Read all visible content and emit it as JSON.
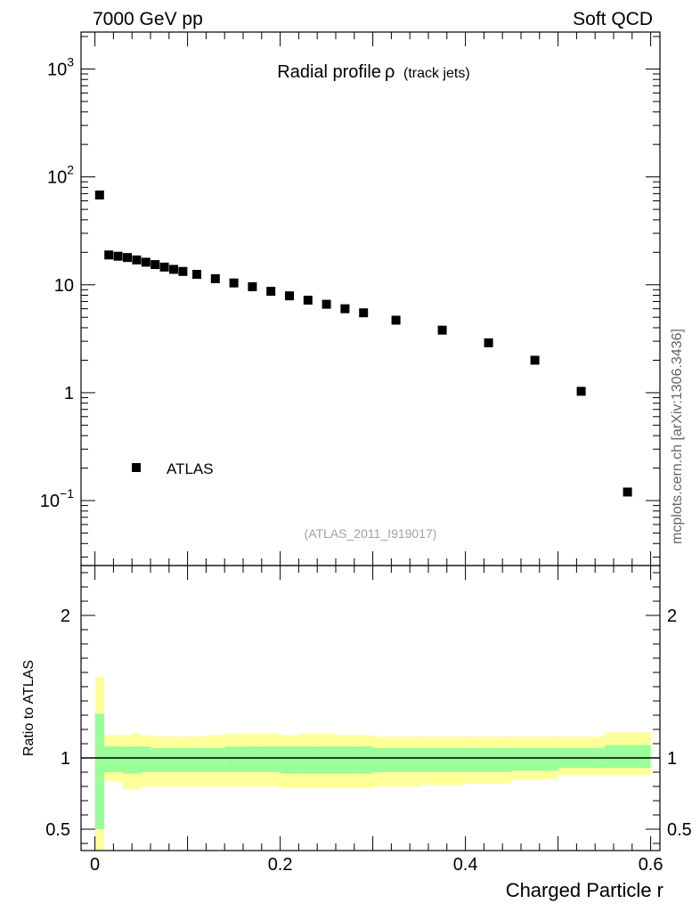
{
  "header": {
    "left": "7000 GeV pp",
    "right": "Soft QCD"
  },
  "side_label": "mcplots.cern.ch [arXiv:1306.3436]",
  "chart_data": [
    {
      "type": "scatter",
      "title": "Radial profile",
      "title_symbol": "ρ",
      "title_suffix": "(track jets)",
      "watermark": "(ATLAS_2011_I919017)",
      "y_scale": "log",
      "ylim": [
        0.025,
        2200
      ],
      "xlim": [
        -0.015,
        0.61
      ],
      "y_ticks": [
        {
          "value": 0.1,
          "base": "10",
          "exp": "−1"
        },
        {
          "value": 1,
          "base": "1",
          "exp": ""
        },
        {
          "value": 10,
          "base": "10",
          "exp": ""
        },
        {
          "value": 100,
          "base": "10",
          "exp": "2"
        },
        {
          "value": 1000,
          "base": "10",
          "exp": "3"
        }
      ],
      "legend": {
        "placement": "lower-left",
        "label": "ATLAS",
        "marker_color": "#000000"
      },
      "series": [
        {
          "name": "ATLAS",
          "color": "#000000",
          "x": [
            0.005,
            0.015,
            0.025,
            0.035,
            0.045,
            0.055,
            0.065,
            0.075,
            0.085,
            0.095,
            0.11,
            0.13,
            0.15,
            0.17,
            0.19,
            0.21,
            0.23,
            0.25,
            0.27,
            0.29,
            0.325,
            0.375,
            0.425,
            0.475,
            0.525,
            0.575
          ],
          "y": [
            68,
            18.9,
            18.4,
            17.9,
            17.0,
            16.2,
            15.4,
            14.6,
            13.9,
            13.3,
            12.5,
            11.4,
            10.4,
            9.6,
            8.7,
            7.9,
            7.2,
            6.6,
            6.0,
            5.5,
            4.7,
            3.8,
            2.9,
            2.0,
            1.03,
            0.12
          ]
        }
      ]
    },
    {
      "type": "area",
      "ylabel": "Ratio to ATLAS",
      "xlabel": "Charged Particle r",
      "xlim": [
        -0.015,
        0.61
      ],
      "ylim": [
        0.35,
        2.35
      ],
      "x_ticks": [
        "0",
        "0.2",
        "0.4",
        "0.6"
      ],
      "x_tick_values": [
        0,
        0.2,
        0.4,
        0.6
      ],
      "y_ticks": [
        "0.5",
        "1",
        "2"
      ],
      "y_tick_values": [
        0.5,
        1,
        2
      ],
      "reference_line": 1,
      "band_colors": {
        "outer": "#ffff99",
        "inner": "#99ff99",
        "line": "#000000"
      },
      "bins": [
        {
          "x0": 0.0,
          "x1": 0.01,
          "outer_lo": 0.35,
          "outer_hi": 1.57,
          "inner_lo": 0.5,
          "inner_hi": 1.31
        },
        {
          "x0": 0.01,
          "x1": 0.02,
          "outer_lo": 0.84,
          "outer_hi": 1.16,
          "inner_lo": 0.9,
          "inner_hi": 1.08
        },
        {
          "x0": 0.02,
          "x1": 0.03,
          "outer_lo": 0.83,
          "outer_hi": 1.16,
          "inner_lo": 0.9,
          "inner_hi": 1.08
        },
        {
          "x0": 0.03,
          "x1": 0.04,
          "outer_lo": 0.78,
          "outer_hi": 1.16,
          "inner_lo": 0.89,
          "inner_hi": 1.08
        },
        {
          "x0": 0.04,
          "x1": 0.05,
          "outer_lo": 0.78,
          "outer_hi": 1.17,
          "inner_lo": 0.89,
          "inner_hi": 1.08
        },
        {
          "x0": 0.05,
          "x1": 0.06,
          "outer_lo": 0.8,
          "outer_hi": 1.16,
          "inner_lo": 0.9,
          "inner_hi": 1.08
        },
        {
          "x0": 0.06,
          "x1": 0.07,
          "outer_lo": 0.8,
          "outer_hi": 1.15,
          "inner_lo": 0.9,
          "inner_hi": 1.07
        },
        {
          "x0": 0.07,
          "x1": 0.08,
          "outer_lo": 0.8,
          "outer_hi": 1.15,
          "inner_lo": 0.9,
          "inner_hi": 1.07
        },
        {
          "x0": 0.08,
          "x1": 0.1,
          "outer_lo": 0.8,
          "outer_hi": 1.15,
          "inner_lo": 0.9,
          "inner_hi": 1.07
        },
        {
          "x0": 0.1,
          "x1": 0.12,
          "outer_lo": 0.8,
          "outer_hi": 1.15,
          "inner_lo": 0.9,
          "inner_hi": 1.07
        },
        {
          "x0": 0.12,
          "x1": 0.14,
          "outer_lo": 0.8,
          "outer_hi": 1.16,
          "inner_lo": 0.9,
          "inner_hi": 1.07
        },
        {
          "x0": 0.14,
          "x1": 0.16,
          "outer_lo": 0.8,
          "outer_hi": 1.17,
          "inner_lo": 0.9,
          "inner_hi": 1.08
        },
        {
          "x0": 0.16,
          "x1": 0.18,
          "outer_lo": 0.8,
          "outer_hi": 1.17,
          "inner_lo": 0.9,
          "inner_hi": 1.08
        },
        {
          "x0": 0.18,
          "x1": 0.2,
          "outer_lo": 0.8,
          "outer_hi": 1.17,
          "inner_lo": 0.9,
          "inner_hi": 1.08
        },
        {
          "x0": 0.2,
          "x1": 0.22,
          "outer_lo": 0.79,
          "outer_hi": 1.16,
          "inner_lo": 0.89,
          "inner_hi": 1.08
        },
        {
          "x0": 0.22,
          "x1": 0.24,
          "outer_lo": 0.79,
          "outer_hi": 1.17,
          "inner_lo": 0.89,
          "inner_hi": 1.08
        },
        {
          "x0": 0.24,
          "x1": 0.26,
          "outer_lo": 0.79,
          "outer_hi": 1.17,
          "inner_lo": 0.89,
          "inner_hi": 1.08
        },
        {
          "x0": 0.26,
          "x1": 0.28,
          "outer_lo": 0.79,
          "outer_hi": 1.16,
          "inner_lo": 0.89,
          "inner_hi": 1.08
        },
        {
          "x0": 0.28,
          "x1": 0.3,
          "outer_lo": 0.79,
          "outer_hi": 1.16,
          "inner_lo": 0.89,
          "inner_hi": 1.08
        },
        {
          "x0": 0.3,
          "x1": 0.35,
          "outer_lo": 0.8,
          "outer_hi": 1.15,
          "inner_lo": 0.9,
          "inner_hi": 1.07
        },
        {
          "x0": 0.35,
          "x1": 0.4,
          "outer_lo": 0.81,
          "outer_hi": 1.15,
          "inner_lo": 0.9,
          "inner_hi": 1.07
        },
        {
          "x0": 0.4,
          "x1": 0.45,
          "outer_lo": 0.82,
          "outer_hi": 1.15,
          "inner_lo": 0.9,
          "inner_hi": 1.07
        },
        {
          "x0": 0.45,
          "x1": 0.5,
          "outer_lo": 0.85,
          "outer_hi": 1.15,
          "inner_lo": 0.91,
          "inner_hi": 1.07
        },
        {
          "x0": 0.5,
          "x1": 0.55,
          "outer_lo": 0.88,
          "outer_hi": 1.15,
          "inner_lo": 0.93,
          "inner_hi": 1.07
        },
        {
          "x0": 0.55,
          "x1": 0.6,
          "outer_lo": 0.88,
          "outer_hi": 1.18,
          "inner_lo": 0.93,
          "inner_hi": 1.09
        }
      ]
    }
  ]
}
